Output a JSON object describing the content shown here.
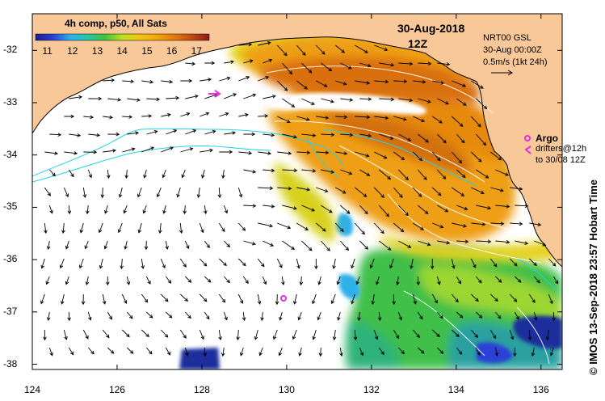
{
  "colorbar": {
    "title": "4h comp, p50, All Sats",
    "ticks": [
      "11",
      "12",
      "13",
      "14",
      "15",
      "16",
      "17"
    ],
    "range": [
      10.5,
      17.5
    ],
    "palette": [
      "#1a1f8f",
      "#2a3fd6",
      "#2fb0e8",
      "#25c7a6",
      "#44c23c",
      "#bfe020",
      "#f2c41a",
      "#f0a50f",
      "#e27a0c",
      "#c24a12",
      "#8a1b18"
    ]
  },
  "date": {
    "day": "30-Aug-2018",
    "hour": "12Z"
  },
  "info": {
    "product": "NRT00 GSL",
    "time": "30-Aug 00:00Z",
    "scale": "0.5m/s (1kt 24h)"
  },
  "legend": {
    "argo_label": "Argo",
    "drifters_line1": "drifters@12h",
    "drifters_line2": "to 30/08 12Z",
    "argo_color": "#e030e0"
  },
  "axes": {
    "x_ticks": [
      "124",
      "126",
      "128",
      "130",
      "132",
      "134",
      "136"
    ],
    "y_ticks": [
      "-32",
      "-33",
      "-34",
      "-35",
      "-36",
      "-37",
      "-38"
    ],
    "x_values": [
      124,
      126,
      128,
      130,
      132,
      134,
      136
    ],
    "y_values": [
      -32,
      -33,
      -34,
      -35,
      -36,
      -37,
      -38
    ],
    "lon_range": [
      124,
      136.5
    ],
    "lat_range": [
      -38.1,
      -31.3
    ]
  },
  "credit": "© IMOS 13-Sep-2018 23:57 Hobart Time",
  "colors": {
    "land": "#f9c898",
    "coast": "#000000",
    "contour": "#ffffff",
    "cyan_contour": "#22d4e8",
    "arrow": "#000000"
  }
}
